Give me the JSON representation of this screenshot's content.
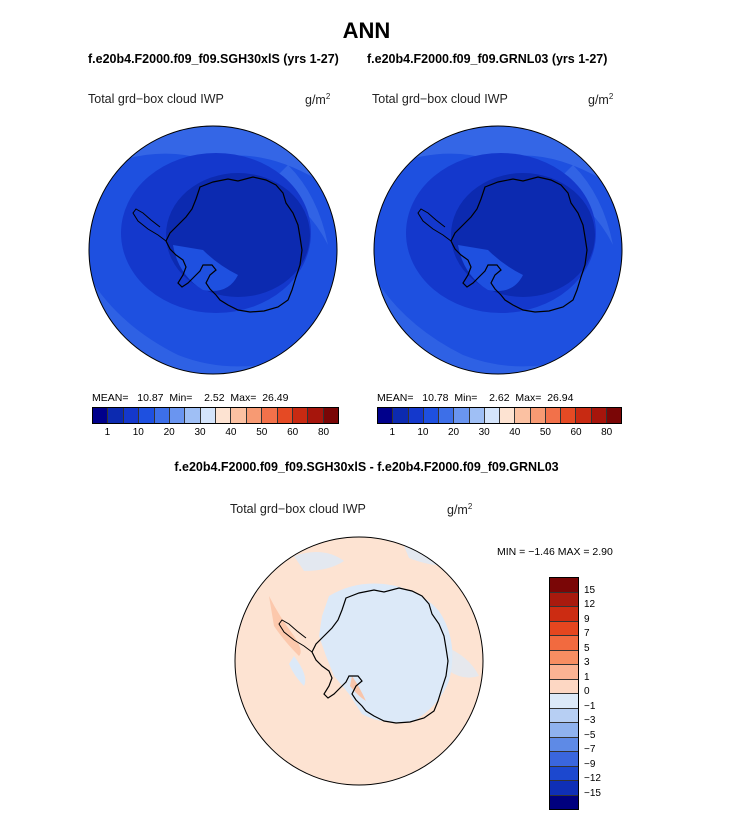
{
  "title": "ANN",
  "panels": [
    {
      "case": "f.e20b4.F2000.f09_f09.SGH30xlS (yrs 1-27)",
      "variable": "Total grd−box cloud IWP",
      "units": "g/m",
      "units_exp": "2",
      "mean_label": "MEAN=",
      "mean": "10.87",
      "min_label": "Min=",
      "min": "2.52",
      "max_label": "Max=",
      "max": "26.49"
    },
    {
      "case": "f.e20b4.F2000.f09_f09.GRNL03 (yrs 1-27)",
      "variable": "Total grd−box cloud IWP",
      "units": "g/m",
      "units_exp": "2",
      "mean_label": "MEAN=",
      "mean": "10.78",
      "min_label": "Min=",
      "min": "2.62",
      "max_label": "Max=",
      "max": "26.94"
    }
  ],
  "abs_colorbar": {
    "colors": [
      "#00008b",
      "#0c2ab0",
      "#1438cc",
      "#1e50e0",
      "#3d6fe8",
      "#6a95f0",
      "#9fbff5",
      "#d4e4fb",
      "#fde3d2",
      "#fbc1a2",
      "#f79a73",
      "#f2714a",
      "#e54a24",
      "#c82a12",
      "#a6150c",
      "#7a0606"
    ],
    "labels": [
      "1",
      "10",
      "20",
      "30",
      "40",
      "50",
      "60",
      "80"
    ]
  },
  "diff": {
    "title": "f.e20b4.F2000.f09_f09.SGH30xlS - f.e20b4.F2000.f09_f09.GRNL03",
    "variable": "Total grd−box cloud IWP",
    "units": "g/m",
    "units_exp": "2",
    "minmax": "MIN =  −1.46 MAX =    2.90"
  },
  "diff_colorbar": {
    "colors": [
      "#7a0606",
      "#a81a0e",
      "#cc2c12",
      "#e5461f",
      "#f26a3f",
      "#f78e62",
      "#fbb393",
      "#fdd7c3",
      "#dce9f8",
      "#b7cff3",
      "#8fb2ee",
      "#5e8ae6",
      "#3a66dd",
      "#1c48cf",
      "#0f2fb6",
      "#00007e"
    ],
    "labels": [
      "15",
      "12",
      "9",
      "7",
      "5",
      "3",
      "1",
      "0",
      "−1",
      "−3",
      "−5",
      "−7",
      "−9",
      "−12",
      "−15"
    ]
  }
}
